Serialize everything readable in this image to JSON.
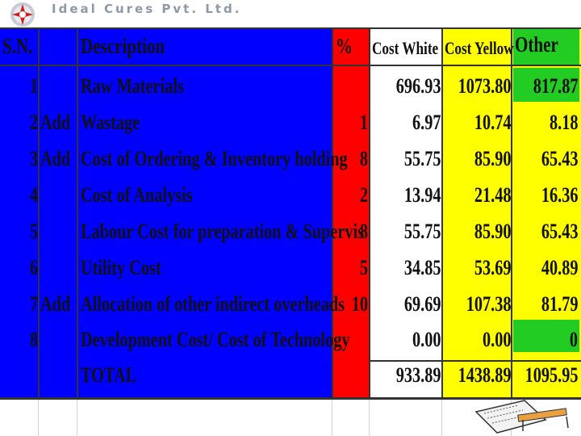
{
  "company": {
    "name": "Ideal Cures Pvt. Ltd."
  },
  "colors": {
    "blue": "#0000ff",
    "red": "#ff0000",
    "yellow": "#ffff00",
    "green": "#22cc22",
    "white": "#ffffff"
  },
  "headers": {
    "sn": "S.N.",
    "description": "Description",
    "percent": "%",
    "cost_white": "Cost White",
    "cost_yellow": "Cost Yellow",
    "other": "Other"
  },
  "rows": [
    {
      "sn": "1",
      "add": "",
      "description": "Raw Materials",
      "percent": "",
      "white": "696.93",
      "yellow": "1073.80",
      "other": "817.87"
    },
    {
      "sn": "2",
      "add": "Add",
      "description": "Wastage",
      "percent": "1",
      "white": "6.97",
      "yellow": "10.74",
      "other": "8.18"
    },
    {
      "sn": "3",
      "add": "Add",
      "description": "Cost of Ordering & Inventory holding",
      "percent": "8",
      "white": "55.75",
      "yellow": "85.90",
      "other": "65.43"
    },
    {
      "sn": "4",
      "add": "",
      "description": "Cost of Analysis",
      "percent": "2",
      "white": "13.94",
      "yellow": "21.48",
      "other": "16.36"
    },
    {
      "sn": "5",
      "add": "",
      "description": "Labour Cost for preparation & Supervis",
      "percent": "8",
      "white": "55.75",
      "yellow": "85.90",
      "other": "65.43"
    },
    {
      "sn": "6",
      "add": "",
      "description": "Utility Cost",
      "percent": "5",
      "white": "34.85",
      "yellow": "53.69",
      "other": "40.89"
    },
    {
      "sn": "7",
      "add": "Add",
      "description": "Allocation of other indirect overheads",
      "percent": "10",
      "white": "69.69",
      "yellow": "107.38",
      "other": "81.79"
    },
    {
      "sn": "8",
      "add": "",
      "description": "Development Cost/ Cost of Technology",
      "percent": "",
      "white": "0.00",
      "yellow": "0.00",
      "other": "0"
    }
  ],
  "total": {
    "label": "TOTAL",
    "white": "933.89",
    "yellow": "1438.89",
    "other": "1095.95"
  }
}
